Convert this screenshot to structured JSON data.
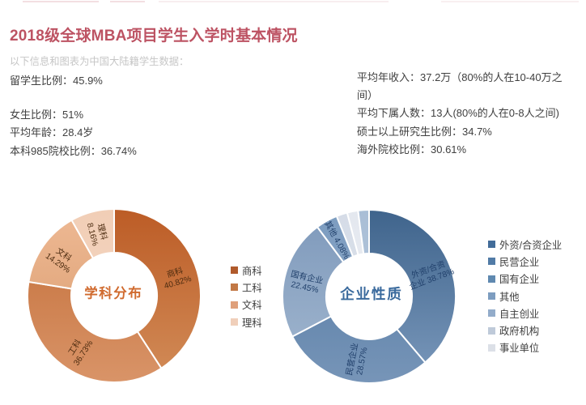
{
  "header": {
    "title": "2018级全球MBA项目学生入学时基本情况",
    "subtitle": "以下信息和图表为中国大陆籍学生数据："
  },
  "stats_left": {
    "line1": "留学生比例：45.9%",
    "line2": "女生比例：51%",
    "line3": "平均年龄：28.4岁",
    "line4": "本科985院校比例：36.74%"
  },
  "stats_right": {
    "line1": "平均年收入：37.2万（80%的人在10-40万之间）",
    "line2": "平均下属人数：13人(80%的人在0-8人之间)",
    "line3": "硕士以上研究生比例：34.7%",
    "line4": "海外院校比例：30.61%"
  },
  "colors": {
    "title": "#bd5363",
    "subtitle": "#c6c6c6",
    "body_text": "#404040"
  },
  "chart_data": [
    {
      "type": "pie",
      "donut": true,
      "title": "学科分布",
      "title_color": "#d06a2e",
      "label_color": "#4d2c10",
      "legend_position": "right",
      "categories": [
        "商科",
        "工科",
        "文科",
        "理科"
      ],
      "values": [
        40.82,
        36.73,
        14.29,
        8.16
      ],
      "unit": "%",
      "slice_labels": [
        [
          "商科",
          "40.82%"
        ],
        [
          "工科",
          "36.73%"
        ],
        [
          "文科",
          "14.29%"
        ],
        [
          "理科",
          "8.16%"
        ]
      ],
      "slice_gradients": [
        [
          "#bc5c26",
          "#d28c58"
        ],
        [
          "#c26c36",
          "#d99468"
        ],
        [
          "#eeb994",
          "#d89a6c"
        ],
        [
          "#f1ceb6",
          "#f6d9c6"
        ]
      ],
      "legend_colors": [
        "#b05a2b",
        "#c27845",
        "#dfa07b",
        "#f0cfba"
      ]
    },
    {
      "type": "pie",
      "donut": true,
      "title": "企业性质",
      "title_color": "#3a6a9d",
      "label_color": "#21406b",
      "legend_position": "right",
      "categories": [
        "外资/合资企业",
        "民营企业",
        "国有企业",
        "其他",
        "自主创业",
        "政府机构",
        "事业单位"
      ],
      "values": [
        38.78,
        28.57,
        22.45,
        4.08,
        2.04,
        2.04,
        2.04
      ],
      "unit": "%",
      "slice_labels": [
        [
          "外资/合资",
          "企业 38.78%"
        ],
        [
          "民营企业",
          "28.57%"
        ],
        [
          "国有企业",
          "22.45%"
        ],
        [
          "其他 4.08%"
        ],
        [],
        [],
        []
      ],
      "slice_gradients": [
        [
          "#3f648c",
          "#7b99bc"
        ],
        [
          "#4f76a0",
          "#7795b8"
        ],
        [
          "#7e99bb",
          "#a3b8d0"
        ],
        [
          "#7c9cc0",
          "#90aac7"
        ],
        [
          "#d5dce7",
          "#dfe4ec"
        ],
        [
          "#e4e8ef",
          "#ebeef3"
        ],
        [
          "#a9bed6",
          "#b6c8dc"
        ]
      ],
      "legend_colors": [
        "#426c99",
        "#517ba6",
        "#5f89b0",
        "#7d9dc0",
        "#93acca",
        "#bfcad9",
        "#dce0e7"
      ]
    }
  ]
}
